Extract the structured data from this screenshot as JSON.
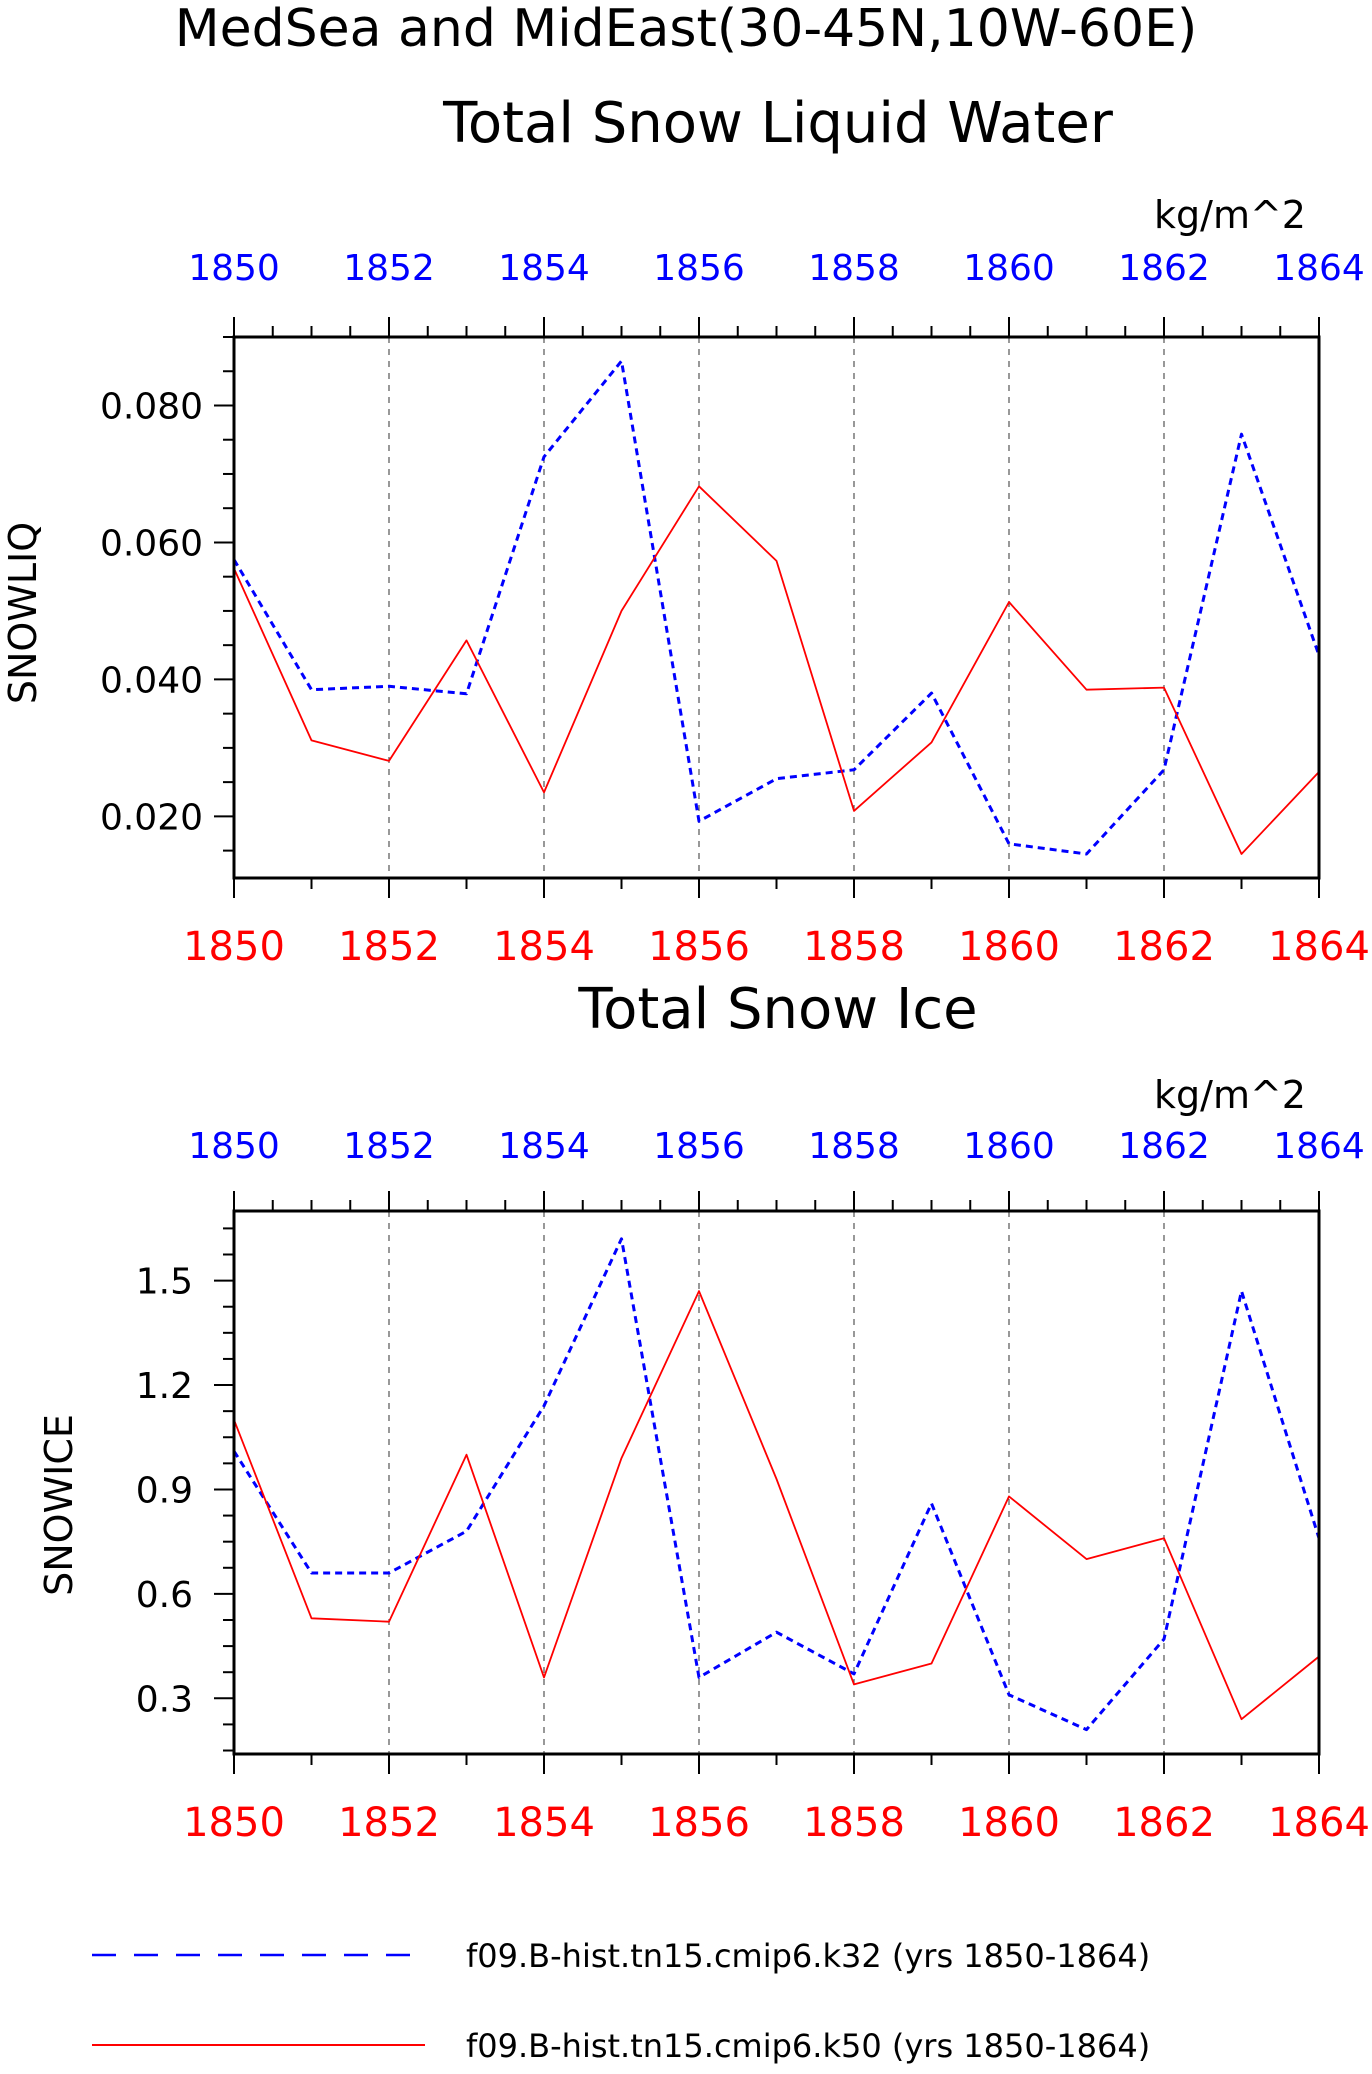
{
  "figure": {
    "main_title": "MedSea and MidEast(30-45N,10W-60E)"
  },
  "colors": {
    "k32": "#0000ff",
    "k50": "#ff0000",
    "axis": "#000000",
    "grid": "#555555"
  },
  "legend": {
    "items": [
      {
        "label": "f09.B-hist.tn15.cmip6.k32 (yrs 1850-1864)",
        "color": "#0000ff",
        "style": "dashed"
      },
      {
        "label": "f09.B-hist.tn15.cmip6.k50 (yrs 1850-1864)",
        "color": "#ff0000",
        "style": "solid"
      }
    ]
  },
  "chart_data": [
    {
      "type": "line",
      "title": "Total Snow Liquid Water",
      "ylabel": "SNOWLIQ",
      "units": "kg/m^2",
      "x": [
        1850,
        1851,
        1852,
        1853,
        1854,
        1855,
        1856,
        1857,
        1858,
        1859,
        1860,
        1861,
        1862,
        1863,
        1864
      ],
      "xlim": [
        1850,
        1864
      ],
      "xticks": [
        "1850",
        "1852",
        "1854",
        "1856",
        "1858",
        "1860",
        "1862",
        "1864"
      ],
      "ylim": [
        0.011,
        0.09
      ],
      "yticks": [
        "0.020",
        "0.040",
        "0.060",
        "0.080"
      ],
      "grid": "vertical dashed at major x ticks",
      "series": [
        {
          "name": "f09.B-hist.tn15.cmip6.k32",
          "color": "#0000ff",
          "style": "dashed",
          "values": [
            0.0575,
            0.0385,
            0.039,
            0.0379,
            0.0725,
            0.0865,
            0.0193,
            0.0255,
            0.0268,
            0.038,
            0.016,
            0.0145,
            0.0268,
            0.0758,
            0.0435
          ]
        },
        {
          "name": "f09.B-hist.tn15.cmip6.k50",
          "color": "#ff0000",
          "style": "solid",
          "values": [
            0.0562,
            0.0311,
            0.0281,
            0.0457,
            0.0235,
            0.05,
            0.0682,
            0.0573,
            0.0208,
            0.0308,
            0.0513,
            0.0385,
            0.0388,
            0.0145,
            0.0265
          ]
        }
      ]
    },
    {
      "type": "line",
      "title": "Total Snow Ice",
      "ylabel": "SNOWICE",
      "units": "kg/m^2",
      "x": [
        1850,
        1851,
        1852,
        1853,
        1854,
        1855,
        1856,
        1857,
        1858,
        1859,
        1860,
        1861,
        1862,
        1863,
        1864
      ],
      "xlim": [
        1850,
        1864
      ],
      "xticks": [
        "1850",
        "1852",
        "1854",
        "1856",
        "1858",
        "1860",
        "1862",
        "1864"
      ],
      "ylim": [
        0.14,
        1.7
      ],
      "yticks": [
        "0.3",
        "0.6",
        "0.9",
        "1.2",
        "1.5"
      ],
      "grid": "vertical dashed at major x ticks",
      "series": [
        {
          "name": "f09.B-hist.tn15.cmip6.k32",
          "color": "#0000ff",
          "style": "dashed",
          "values": [
            1.01,
            0.66,
            0.66,
            0.78,
            1.14,
            1.62,
            0.36,
            0.49,
            0.37,
            0.86,
            0.31,
            0.21,
            0.47,
            1.47,
            0.76
          ]
        },
        {
          "name": "f09.B-hist.tn15.cmip6.k50",
          "color": "#ff0000",
          "style": "solid",
          "values": [
            1.1,
            0.53,
            0.52,
            1.0,
            0.36,
            0.99,
            1.47,
            0.93,
            0.34,
            0.4,
            0.88,
            0.7,
            0.76,
            0.24,
            0.42
          ]
        }
      ]
    }
  ]
}
